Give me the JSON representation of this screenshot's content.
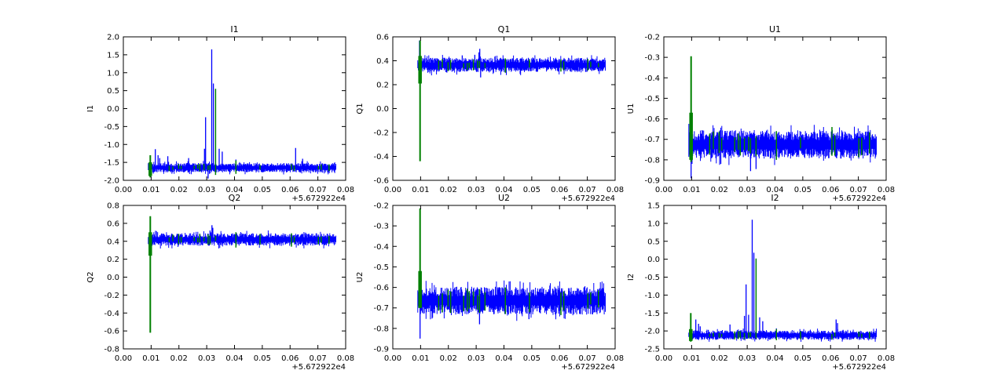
{
  "figure": {
    "background": "#ffffff",
    "frame_color": "#000000",
    "x_offset_text": "+5.672922e4"
  },
  "flag_marks_x": [
    0.0165,
    0.0178,
    0.0199,
    0.0208,
    0.0255,
    0.0268,
    0.0275,
    0.029,
    0.0305,
    0.0312,
    0.0332,
    0.0405,
    0.0492,
    0.0605,
    0.0615,
    0.0702,
    0.0712,
    0.074
  ],
  "chart_data": [
    {
      "type": "line",
      "title": "I1",
      "ylabel": "I1",
      "xlabel": "",
      "grid": false,
      "xlim": [
        0.0,
        0.08
      ],
      "ylim": [
        -2.0,
        2.0
      ],
      "x_tick_labels": [
        "0.00",
        "0.01",
        "0.02",
        "0.03",
        "0.04",
        "0.05",
        "0.06",
        "0.07",
        "0.08"
      ],
      "y_tick_labels": [
        "2.0",
        "1.5",
        "1.0",
        "0.5",
        "0.0",
        "-0.5",
        "-1.0",
        "-1.5",
        "-2.0"
      ],
      "x_offset_text": "+5.672922e4",
      "series": {
        "signal": {
          "color": "#0000ff",
          "x_start": 0.009,
          "x_end": 0.0765,
          "baseline": -1.65,
          "noise_halfwidth": 0.13,
          "spikes": [
            [
              0.0115,
              -1.13
            ],
            [
              0.0125,
              -1.3
            ],
            [
              0.0131,
              -1.38
            ],
            [
              0.016,
              -1.33
            ],
            [
              0.0235,
              -1.38
            ],
            [
              0.0292,
              -1.12
            ],
            [
              0.0296,
              -0.24
            ],
            [
              0.0305,
              -1.95
            ],
            [
              0.0318,
              1.65
            ],
            [
              0.0324,
              0.7
            ],
            [
              0.0345,
              -1.12
            ],
            [
              0.0356,
              -1.2
            ],
            [
              0.0405,
              -1.42
            ],
            [
              0.062,
              -1.1
            ],
            [
              0.0645,
              -1.4
            ]
          ]
        },
        "flags": {
          "color": "#008000",
          "event": {
            "x": 0.0097,
            "y1": -1.3,
            "y2": -1.92,
            "blob": [
              -1.5,
              -1.88
            ]
          },
          "extra": [
            [
              0.0332,
              0.55,
              -1.85
            ],
            [
              0.0405,
              -1.45,
              -1.82
            ]
          ]
        }
      }
    },
    {
      "type": "line",
      "title": "Q1",
      "ylabel": "Q1",
      "xlabel": "",
      "grid": false,
      "xlim": [
        0.0,
        0.08
      ],
      "ylim": [
        -0.6,
        0.6
      ],
      "x_tick_labels": [
        "0.00",
        "0.01",
        "0.02",
        "0.03",
        "0.04",
        "0.05",
        "0.06",
        "0.07",
        "0.08"
      ],
      "y_tick_labels": [
        "0.6",
        "0.4",
        "0.2",
        "0.0",
        "-0.2",
        "-0.4",
        "-0.6"
      ],
      "x_offset_text": "+5.672922e4",
      "series": {
        "signal": {
          "color": "#0000ff",
          "x_start": 0.009,
          "x_end": 0.0765,
          "baseline": 0.365,
          "noise_halfwidth": 0.06,
          "spikes": [
            [
              0.0096,
              0.57
            ],
            [
              0.0099,
              0.21
            ],
            [
              0.025,
              0.445
            ],
            [
              0.0295,
              0.45
            ],
            [
              0.031,
              0.47
            ],
            [
              0.0313,
              0.5
            ],
            [
              0.0316,
              0.26
            ]
          ]
        },
        "flags": {
          "color": "#008000",
          "event": {
            "x": 0.0098,
            "y1": 0.57,
            "y2": -0.44,
            "blob": [
              0.21,
              0.44
            ]
          },
          "extra": [
            [
              0.0405,
              0.42,
              0.3
            ],
            [
              0.0605,
              0.41,
              0.31
            ]
          ]
        }
      }
    },
    {
      "type": "line",
      "title": "U1",
      "ylabel": "U1",
      "xlabel": "",
      "grid": false,
      "xlim": [
        0.0,
        0.08
      ],
      "ylim": [
        -0.9,
        -0.2
      ],
      "x_tick_labels": [
        "0.00",
        "0.01",
        "0.02",
        "0.03",
        "0.04",
        "0.05",
        "0.06",
        "0.07",
        "0.08"
      ],
      "y_tick_labels": [
        "-0.2",
        "-0.3",
        "-0.4",
        "-0.5",
        "-0.6",
        "-0.7",
        "-0.8",
        "-0.9"
      ],
      "x_offset_text": "+5.672922e4",
      "series": {
        "signal": {
          "color": "#0000ff",
          "x_start": 0.009,
          "x_end": 0.0765,
          "baseline": -0.725,
          "noise_halfwidth": 0.07,
          "spikes": [
            [
              0.0098,
              -0.89
            ],
            [
              0.00985,
              -0.52
            ],
            [
              0.0205,
              -0.82
            ],
            [
              0.0312,
              -0.855
            ],
            [
              0.0332,
              -0.845
            ]
          ]
        },
        "flags": {
          "color": "#008000",
          "event": {
            "x": 0.0098,
            "y1": -0.295,
            "y2": -0.81,
            "blob": [
              -0.57,
              -0.8
            ]
          },
          "extra": [
            [
              0.0405,
              -0.66,
              -0.8
            ],
            [
              0.0605,
              -0.64,
              -0.78
            ]
          ]
        }
      }
    },
    {
      "type": "line",
      "title": "Q2",
      "ylabel": "Q2",
      "xlabel": "",
      "grid": false,
      "xlim": [
        0.0,
        0.08
      ],
      "ylim": [
        -0.8,
        0.8
      ],
      "x_tick_labels": [
        "0.00",
        "0.01",
        "0.02",
        "0.03",
        "0.04",
        "0.05",
        "0.06",
        "0.07",
        "0.08"
      ],
      "y_tick_labels": [
        "0.8",
        "0.6",
        "0.4",
        "0.2",
        "0.0",
        "-0.2",
        "-0.4",
        "-0.6",
        "-0.8"
      ],
      "x_offset_text": "+5.672922e4",
      "series": {
        "signal": {
          "color": "#0000ff",
          "x_start": 0.009,
          "x_end": 0.0765,
          "baseline": 0.42,
          "noise_halfwidth": 0.07,
          "spikes": [
            [
              0.0097,
              0.52
            ],
            [
              0.0099,
              0.25
            ],
            [
              0.0312,
              0.52
            ],
            [
              0.0319,
              0.58
            ],
            [
              0.0322,
              0.55
            ]
          ]
        },
        "flags": {
          "color": "#008000",
          "event": {
            "x": 0.0097,
            "y1": 0.68,
            "y2": -0.62,
            "blob": [
              0.24,
              0.5
            ]
          },
          "extra": [
            [
              0.0405,
              0.5,
              0.33
            ],
            [
              0.0605,
              0.49,
              0.34
            ]
          ]
        }
      }
    },
    {
      "type": "line",
      "title": "U2",
      "ylabel": "U2",
      "xlabel": "",
      "grid": false,
      "xlim": [
        0.0,
        0.08
      ],
      "ylim": [
        -0.9,
        -0.2
      ],
      "x_tick_labels": [
        "0.00",
        "0.01",
        "0.02",
        "0.03",
        "0.04",
        "0.05",
        "0.06",
        "0.07",
        "0.08"
      ],
      "y_tick_labels": [
        "-0.2",
        "-0.3",
        "-0.4",
        "-0.5",
        "-0.6",
        "-0.7",
        "-0.8",
        "-0.9"
      ],
      "x_offset_text": "+5.672922e4",
      "series": {
        "signal": {
          "color": "#0000ff",
          "x_start": 0.009,
          "x_end": 0.0765,
          "baseline": -0.665,
          "noise_halfwidth": 0.068,
          "spikes": [
            [
              0.0098,
              -0.85
            ],
            [
              0.00985,
              -0.46
            ],
            [
              0.0312,
              -0.78
            ],
            [
              0.049,
              -0.755
            ]
          ]
        },
        "flags": {
          "color": "#008000",
          "event": {
            "x": 0.0098,
            "y1": -0.215,
            "y2": -0.7,
            "blob": [
              -0.52,
              -0.7
            ]
          },
          "extra": [
            [
              0.0405,
              -0.6,
              -0.73
            ],
            [
              0.0605,
              -0.625,
              -0.735
            ]
          ]
        }
      }
    },
    {
      "type": "line",
      "title": "I2",
      "ylabel": "I2",
      "xlabel": "",
      "grid": false,
      "xlim": [
        0.0,
        0.08
      ],
      "ylim": [
        -2.5,
        1.5
      ],
      "x_tick_labels": [
        "0.00",
        "0.01",
        "0.02",
        "0.03",
        "0.04",
        "0.05",
        "0.06",
        "0.07",
        "0.08"
      ],
      "y_tick_labels": [
        "1.5",
        "1.0",
        "0.5",
        "0.0",
        "-0.5",
        "-1.0",
        "-1.5",
        "-2.0",
        "-2.5"
      ],
      "x_offset_text": "+5.672922e4",
      "series": {
        "signal": {
          "color": "#0000ff",
          "x_start": 0.009,
          "x_end": 0.0765,
          "baseline": -2.12,
          "noise_halfwidth": 0.13,
          "spikes": [
            [
              0.0115,
              -1.68
            ],
            [
              0.0125,
              -1.8
            ],
            [
              0.0131,
              -1.87
            ],
            [
              0.016,
              -1.97
            ],
            [
              0.0238,
              -1.82
            ],
            [
              0.029,
              -1.58
            ],
            [
              0.0296,
              -0.7
            ],
            [
              0.0305,
              -1.55
            ],
            [
              0.0318,
              1.1
            ],
            [
              0.0324,
              0.18
            ],
            [
              0.0345,
              -1.62
            ],
            [
              0.0356,
              -1.73
            ],
            [
              0.0405,
              -1.93
            ],
            [
              0.062,
              -1.68
            ],
            [
              0.0625,
              -1.78
            ],
            [
              0.0645,
              -1.97
            ]
          ]
        },
        "flags": {
          "color": "#008000",
          "event": {
            "x": 0.0097,
            "y1": -1.5,
            "y2": -2.3,
            "blob": [
              -1.95,
              -2.28
            ]
          },
          "extra": [
            [
              0.0332,
              0.02,
              -2.1
            ],
            [
              0.0405,
              -1.95,
              -2.26
            ]
          ]
        }
      }
    }
  ]
}
